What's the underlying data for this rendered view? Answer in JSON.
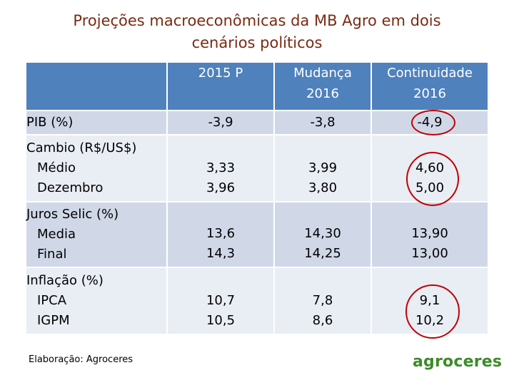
{
  "title_line1": "Projeções macroeconômicas da MB Agro em dois",
  "title_line2": "cenários políticos",
  "table": {
    "headers": [
      "",
      "2015 P",
      "Mudança 2016",
      "Continuidade 2016"
    ],
    "header_lines": {
      "col1": [
        "2015 P"
      ],
      "col2": [
        "Mudança",
        "2016"
      ],
      "col3": [
        "Continuidade",
        "2016"
      ]
    },
    "rows": [
      {
        "label": "PIB (%)",
        "sub": [],
        "v2015": [
          "-3,9"
        ],
        "mudanca": [
          "-3,8"
        ],
        "continuidade": [
          "-4,9"
        ]
      },
      {
        "label": "Cambio (R$/US$)",
        "sub": [
          "Médio",
          "Dezembro"
        ],
        "v2015": [
          "3,33",
          "3,96"
        ],
        "mudanca": [
          "3,99",
          "3,80"
        ],
        "continuidade": [
          "4,60",
          "5,00"
        ]
      },
      {
        "label": "Juros Selic (%)",
        "sub": [
          "Media",
          "Final"
        ],
        "v2015": [
          "13,6",
          "14,3"
        ],
        "mudanca": [
          "14,30",
          "14,25"
        ],
        "continuidade": [
          "13,90",
          "13,00"
        ]
      },
      {
        "label": "Inflação (%)",
        "sub": [
          "IPCA",
          "IGPM"
        ],
        "v2015": [
          "10,7",
          "10,5"
        ],
        "mudanca": [
          "7,8",
          "8,6"
        ],
        "continuidade": [
          "9,1",
          "10,2"
        ]
      }
    ]
  },
  "footer": "Elaboração: Agroceres",
  "logo_text": "agroceres",
  "colors": {
    "title": "#7a2a12",
    "header_bg": "#4f81bd",
    "row_dark": "#d0d8e8",
    "row_light": "#e9edf4",
    "highlight_circle": "#c00000",
    "logo": "#3d8b2b"
  }
}
